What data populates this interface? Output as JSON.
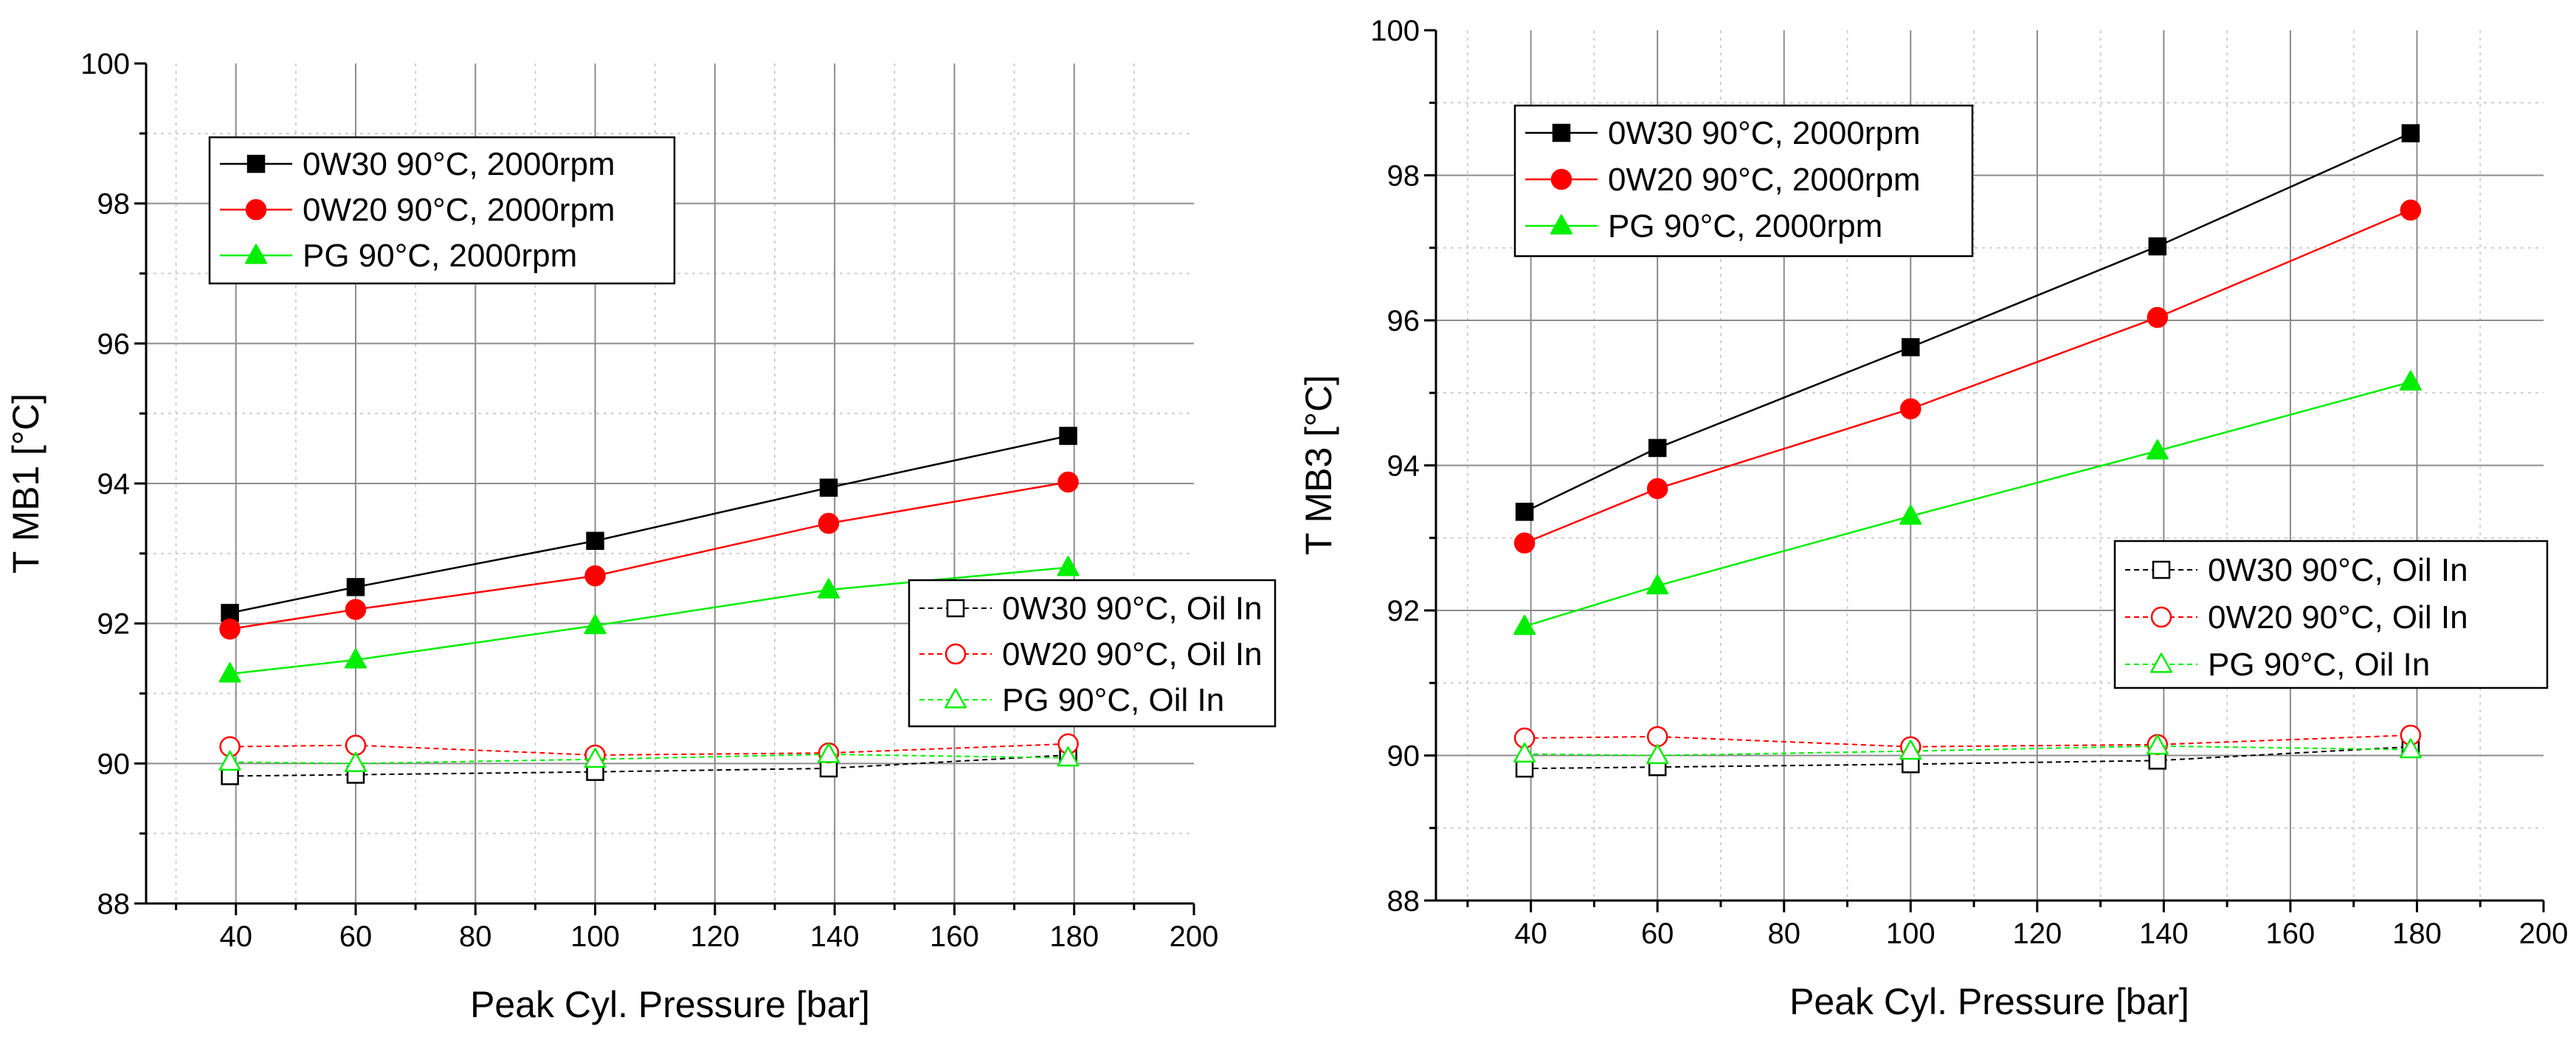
{
  "chart_data": [
    {
      "type": "line",
      "title": "",
      "xlabel": "Peak Cyl. Pressure [bar]",
      "ylabel": "T MB1 [°C]",
      "xlim": [
        25,
        200
      ],
      "ylim": [
        88,
        100
      ],
      "xticks": [
        40,
        60,
        80,
        100,
        120,
        140,
        160,
        180,
        200
      ],
      "yticks": [
        88,
        90,
        92,
        94,
        96,
        98,
        100
      ],
      "xtick_labels": [
        "40",
        "60",
        "80",
        "100",
        "120",
        "140",
        "160",
        "180",
        "200"
      ],
      "ytick_labels": [
        "88",
        "90",
        "92",
        "94",
        "96",
        "98",
        "100"
      ],
      "grid": true,
      "legend": [
        {
          "position": "top-left",
          "entries": [
            "0W30 90°C, 2000rpm",
            "0W20 90°C, 2000rpm",
            "PG 90°C, 2000rpm"
          ]
        },
        {
          "position": "center-right",
          "entries": [
            "0W30 90°C, Oil In",
            "0W20 90°C, Oil In",
            "PG 90°C, Oil In"
          ]
        }
      ],
      "series": [
        {
          "name": "0W30 90°C, 2000rpm",
          "color": "#000000",
          "marker": "square",
          "filled": true,
          "dashed": false,
          "x": [
            39,
            60,
            100,
            139,
            179
          ],
          "y": [
            92.15,
            92.52,
            93.18,
            93.94,
            94.68
          ]
        },
        {
          "name": "0W20 90°C, 2000rpm",
          "color": "#ff0000",
          "marker": "circle",
          "filled": true,
          "dashed": false,
          "x": [
            39,
            60,
            100,
            139,
            179
          ],
          "y": [
            91.92,
            92.2,
            92.68,
            93.43,
            94.02
          ]
        },
        {
          "name": "PG 90°C, 2000rpm",
          "color": "#00ee00",
          "marker": "triangle",
          "filled": true,
          "dashed": false,
          "x": [
            39,
            60,
            100,
            139,
            179
          ],
          "y": [
            91.28,
            91.48,
            91.97,
            92.48,
            92.8
          ]
        },
        {
          "name": "0W30 90°C, Oil In",
          "color": "#000000",
          "marker": "square",
          "filled": false,
          "dashed": true,
          "x": [
            39,
            60,
            100,
            139,
            179
          ],
          "y": [
            89.82,
            89.84,
            89.88,
            89.93,
            90.12
          ]
        },
        {
          "name": "0W20 90°C, Oil In",
          "color": "#ff0000",
          "marker": "circle",
          "filled": false,
          "dashed": true,
          "x": [
            39,
            60,
            100,
            139,
            179
          ],
          "y": [
            90.24,
            90.26,
            90.12,
            90.15,
            90.28
          ]
        },
        {
          "name": "PG 90°C, Oil In",
          "color": "#00ee00",
          "marker": "triangle",
          "filled": false,
          "dashed": true,
          "x": [
            39,
            60,
            100,
            139,
            179
          ],
          "y": [
            90.02,
            90.0,
            90.06,
            90.13,
            90.08
          ]
        }
      ]
    },
    {
      "type": "line",
      "title": "",
      "xlabel": "Peak Cyl. Pressure [bar]",
      "ylabel": "T MB3 [°C]",
      "xlim": [
        25,
        200
      ],
      "ylim": [
        88,
        100
      ],
      "xticks": [
        40,
        60,
        80,
        100,
        120,
        140,
        160,
        180,
        200
      ],
      "yticks": [
        88,
        90,
        92,
        94,
        96,
        98,
        100
      ],
      "xtick_labels": [
        "40",
        "60",
        "80",
        "100",
        "120",
        "140",
        "160",
        "180",
        "200"
      ],
      "ytick_labels": [
        "88",
        "90",
        "92",
        "94",
        "96",
        "98",
        "100"
      ],
      "grid": true,
      "legend": [
        {
          "position": "top-left",
          "entries": [
            "0W30 90°C, 2000rpm",
            "0W20 90°C, 2000rpm",
            "PG 90°C, 2000rpm"
          ]
        },
        {
          "position": "center-right",
          "entries": [
            "0W30 90°C, Oil In",
            "0W20 90°C, Oil In",
            "PG 90°C, Oil In"
          ]
        }
      ],
      "series": [
        {
          "name": "0W30 90°C, 2000rpm",
          "color": "#000000",
          "marker": "square",
          "filled": true,
          "dashed": false,
          "x": [
            39,
            60,
            100,
            139,
            179
          ],
          "y": [
            93.36,
            94.24,
            95.63,
            97.02,
            98.58
          ]
        },
        {
          "name": "0W20 90°C, 2000rpm",
          "color": "#ff0000",
          "marker": "circle",
          "filled": true,
          "dashed": false,
          "x": [
            39,
            60,
            100,
            139,
            179
          ],
          "y": [
            92.93,
            93.68,
            94.78,
            96.04,
            97.52
          ]
        },
        {
          "name": "PG 90°C, 2000rpm",
          "color": "#00ee00",
          "marker": "triangle",
          "filled": true,
          "dashed": false,
          "x": [
            39,
            60,
            100,
            139,
            179
          ],
          "y": [
            91.78,
            92.34,
            93.3,
            94.2,
            95.15
          ]
        },
        {
          "name": "0W30 90°C, Oil In",
          "color": "#000000",
          "marker": "square",
          "filled": false,
          "dashed": true,
          "x": [
            39,
            60,
            100,
            139,
            179
          ],
          "y": [
            89.82,
            89.84,
            89.88,
            89.93,
            90.12
          ]
        },
        {
          "name": "0W20 90°C, Oil In",
          "color": "#ff0000",
          "marker": "circle",
          "filled": false,
          "dashed": true,
          "x": [
            39,
            60,
            100,
            139,
            179
          ],
          "y": [
            90.24,
            90.26,
            90.12,
            90.15,
            90.28
          ]
        },
        {
          "name": "PG 90°C, Oil In",
          "color": "#00ee00",
          "marker": "triangle",
          "filled": false,
          "dashed": true,
          "x": [
            39,
            60,
            100,
            139,
            179
          ],
          "y": [
            90.02,
            90.0,
            90.06,
            90.13,
            90.08
          ]
        }
      ]
    }
  ]
}
